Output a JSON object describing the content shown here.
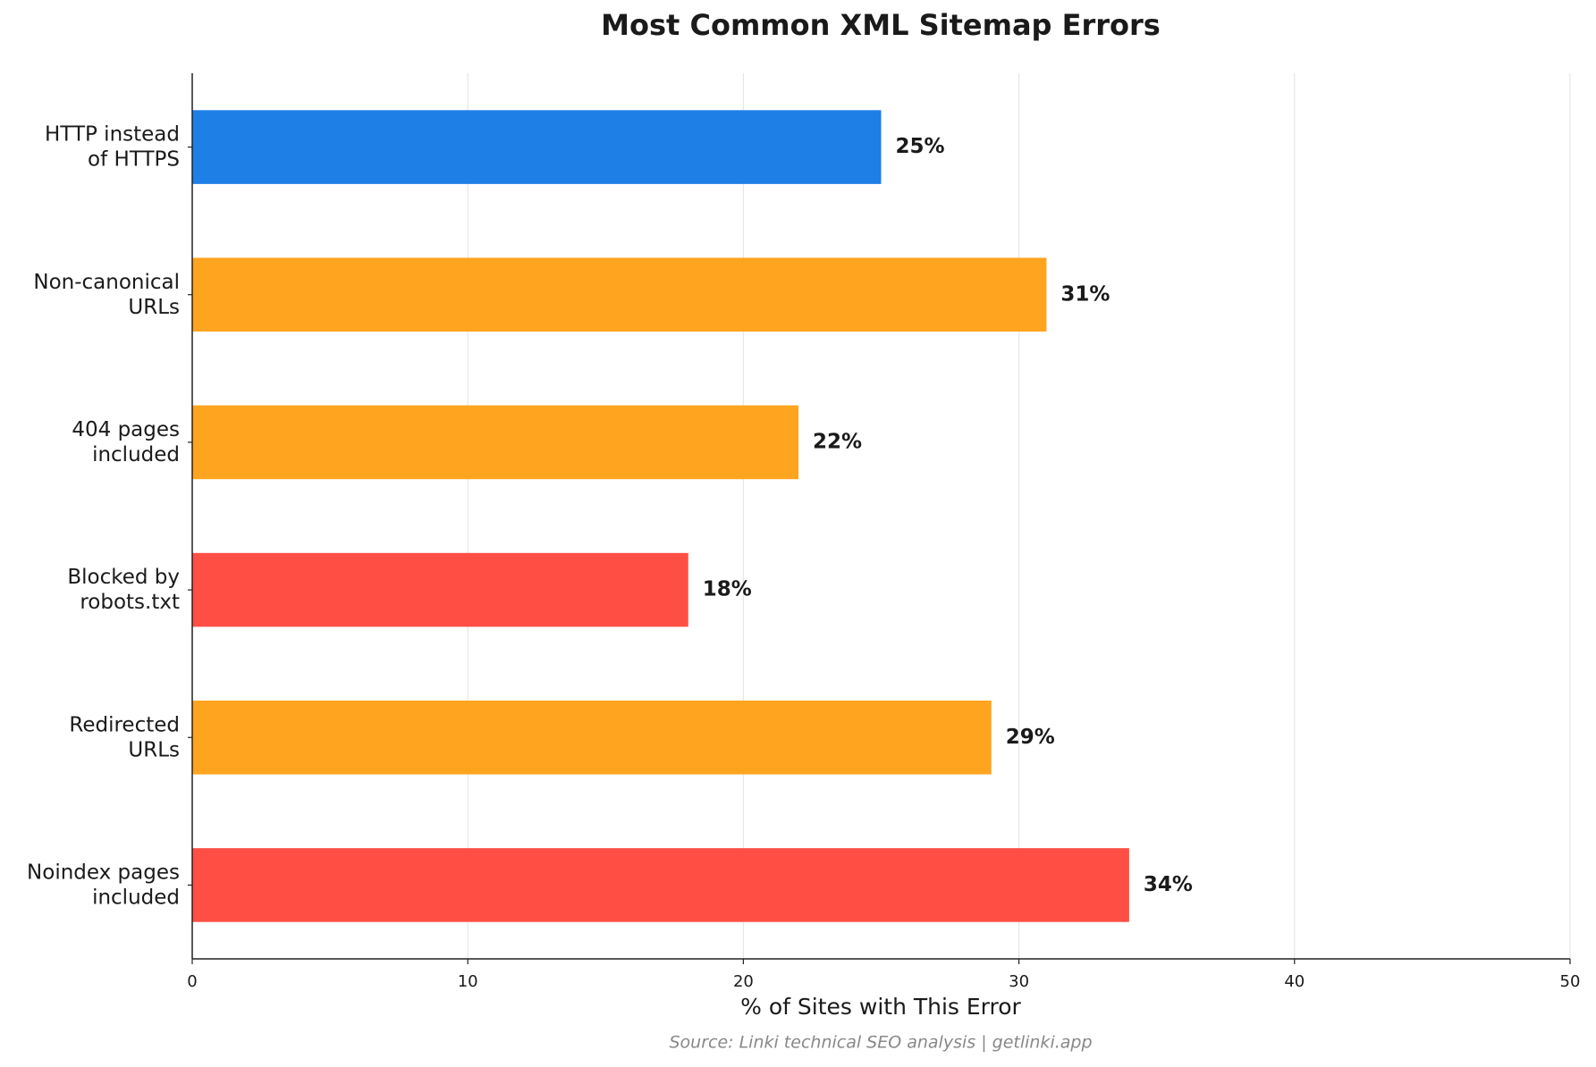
{
  "chart_data": {
    "type": "barh",
    "title": "Most Common XML Sitemap Errors",
    "categories": [
      "HTTP instead\nof HTTPS",
      "Non-canonical\nURLs",
      "404 pages\nincluded",
      "Blocked by\nrobots.txt",
      "Redirected\nURLs",
      "Noindex pages\nincluded"
    ],
    "values": [
      25,
      31,
      22,
      18,
      29,
      34
    ],
    "value_labels": [
      "25%",
      "31%",
      "22%",
      "18%",
      "29%",
      "34%"
    ],
    "colors": [
      "#1e7fe6",
      "#ffa41f",
      "#ffa41f",
      "#ff4f45",
      "#ffa41f",
      "#ff4f45"
    ],
    "x_label": "% of Sites with This Error",
    "source": "Source: Linki technical SEO analysis | getlinki.app",
    "xlim": [
      0,
      50
    ],
    "xticks": [
      0,
      10,
      20,
      30,
      40,
      50
    ],
    "grid": true
  }
}
